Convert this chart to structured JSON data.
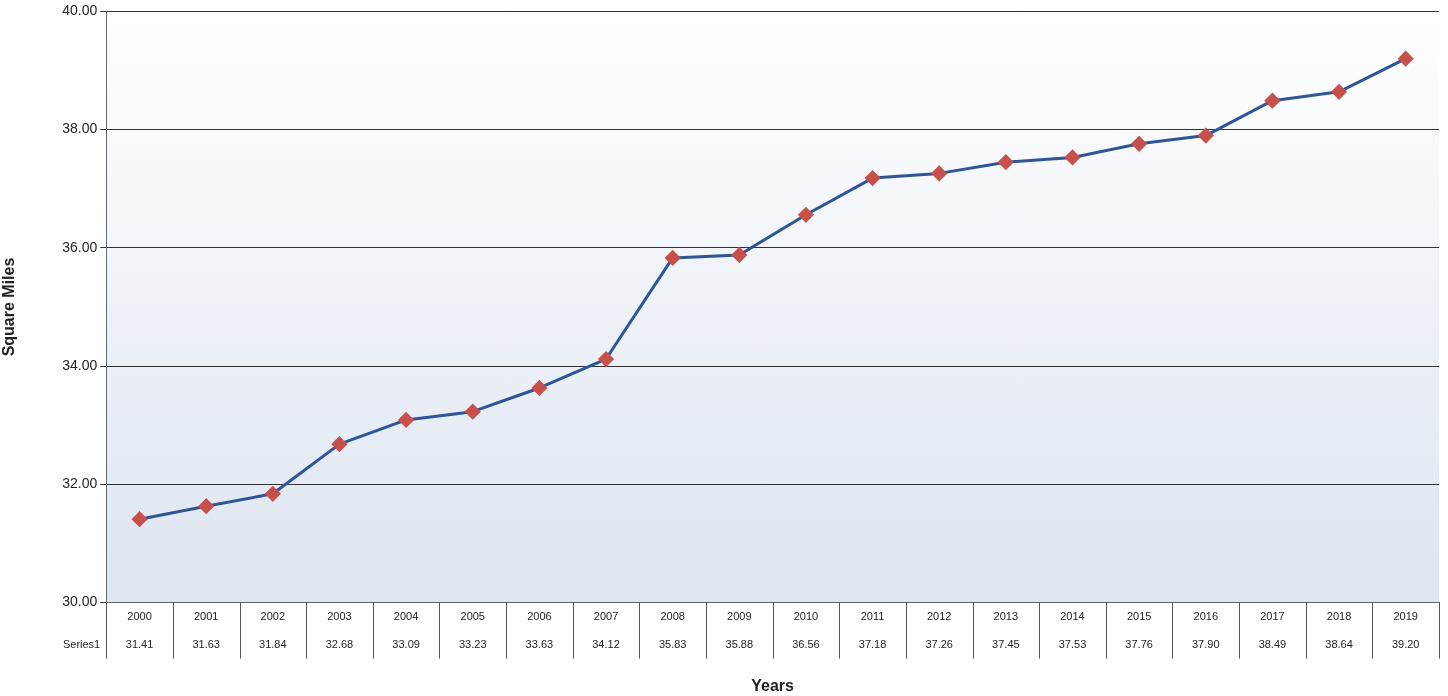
{
  "chart_data": {
    "type": "line",
    "xlabel": "Years",
    "ylabel": "Square Miles",
    "categories": [
      "2000",
      "2001",
      "2002",
      "2003",
      "2004",
      "2005",
      "2006",
      "2007",
      "2008",
      "2009",
      "2010",
      "2011",
      "2012",
      "2013",
      "2014",
      "2015",
      "2016",
      "2017",
      "2018",
      "2019"
    ],
    "series": [
      {
        "name": "Series1",
        "color": "#2f5597",
        "colors": [
          "#c8504a",
          "#c8504a",
          "#c8504a",
          "#c8504a",
          "#c8504a",
          "#c8504a",
          "#c8504a",
          "#c8504a",
          "#c8504a",
          "#c8504a",
          "#c8504a",
          "#c8504a",
          "#c8504a",
          "#c8504a",
          "#c8504a",
          "#c8504a",
          "#c8504a",
          "#c8504a",
          "#c8504a",
          "#c8504a"
        ],
        "values": [
          31.41,
          31.63,
          31.84,
          32.68,
          33.09,
          33.23,
          33.63,
          34.12,
          35.83,
          35.88,
          36.56,
          37.18,
          37.26,
          37.45,
          37.53,
          37.76,
          37.9,
          38.49,
          38.64,
          39.2
        ],
        "value_labels": [
          "31.41",
          "31.63",
          "31.84",
          "32.68",
          "33.09",
          "33.23",
          "33.63",
          "34.12",
          "35.83",
          "35.88",
          "36.56",
          "37.18",
          "37.26",
          "37.45",
          "37.53",
          "37.76",
          "37.90",
          "38.49",
          "38.64",
          "39.20"
        ]
      }
    ],
    "ylim": [
      30,
      40
    ],
    "yticks": [
      {
        "value": 30,
        "label": "30.00"
      },
      {
        "value": 32,
        "label": "32.00"
      },
      {
        "value": 34,
        "label": "34.00"
      },
      {
        "value": 36,
        "label": "36.00"
      },
      {
        "value": 38,
        "label": "38.00"
      },
      {
        "value": 40,
        "label": "40.00"
      }
    ],
    "grid": "y",
    "marker": "diamond",
    "line_style": "solid"
  }
}
